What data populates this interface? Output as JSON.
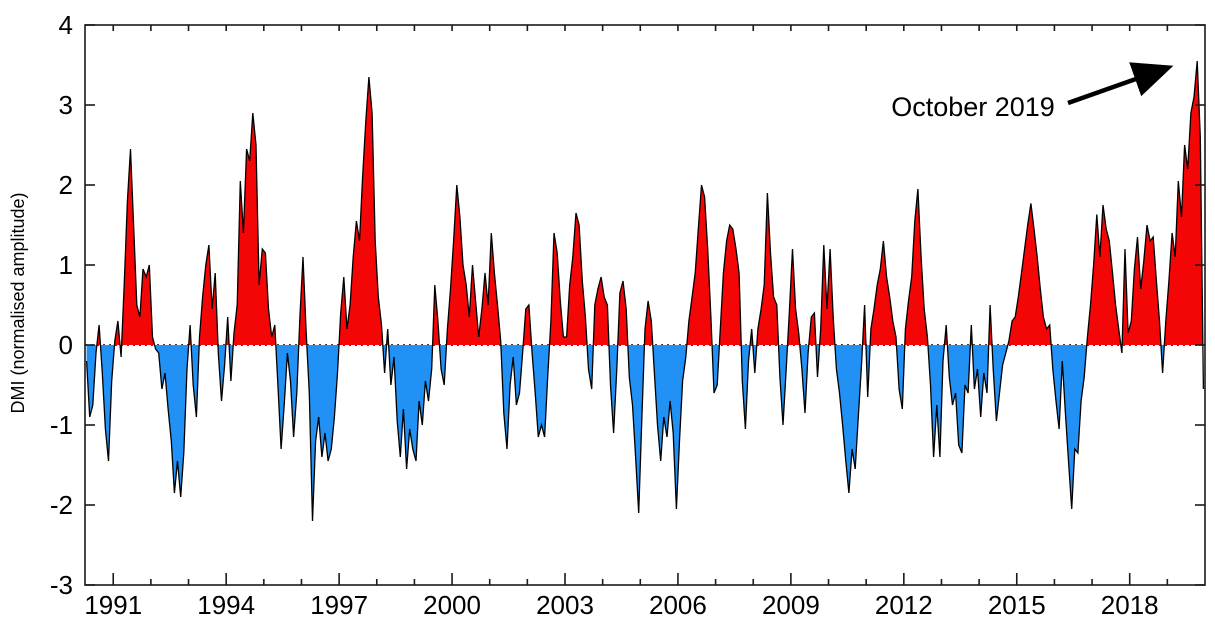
{
  "annotation": {
    "label": "October 2019"
  },
  "chart_data": {
    "type": "area",
    "title": "",
    "xlabel": "",
    "ylabel": "DMI (normalised amplitude)",
    "annotation": "October 2019",
    "annotation_points_to": "peak value 3.55 in October 2019",
    "xlim": [
      1990.25,
      2020.0
    ],
    "ylim": [
      -3,
      4
    ],
    "y_ticks": [
      -3,
      -2,
      -1,
      0,
      1,
      2,
      3,
      4
    ],
    "x_major_ticks": [
      1991,
      1994,
      1997,
      2000,
      2003,
      2006,
      2009,
      2012,
      2015,
      2018
    ],
    "x_minor_tick_interval_years": 1,
    "zero_line_style": "dotted",
    "grid": false,
    "positive_color": "#f40606",
    "negative_color": "#2191f5",
    "outline_color": "#000000",
    "cadence": "monthly",
    "series_start": {
      "year": 1990,
      "month": 4
    },
    "series_name": "DMI normalised amplitude",
    "values": [
      -0.2,
      -0.9,
      -0.75,
      -0.1,
      0.25,
      -0.35,
      -1.05,
      -1.45,
      -0.45,
      0.05,
      0.3,
      -0.15,
      0.75,
      1.8,
      2.45,
      1.5,
      0.5,
      0.35,
      0.95,
      0.85,
      1.0,
      0.1,
      -0.05,
      -0.1,
      -0.55,
      -0.35,
      -0.8,
      -1.2,
      -1.85,
      -1.45,
      -1.9,
      -1.35,
      -0.3,
      0.25,
      -0.5,
      -0.9,
      0.1,
      0.6,
      1.0,
      1.25,
      0.45,
      0.9,
      -0.1,
      -0.7,
      -0.25,
      0.35,
      -0.45,
      0.15,
      0.5,
      2.05,
      1.4,
      2.45,
      2.3,
      2.9,
      2.5,
      0.75,
      1.2,
      1.15,
      0.45,
      0.1,
      0.25,
      -0.5,
      -1.3,
      -0.75,
      -0.1,
      -0.45,
      -1.15,
      -0.6,
      0.35,
      1.1,
      0.15,
      -0.6,
      -2.2,
      -1.2,
      -0.9,
      -1.4,
      -1.1,
      -1.45,
      -1.3,
      -0.9,
      -0.35,
      0.4,
      0.85,
      0.2,
      0.5,
      1.1,
      1.55,
      1.3,
      2.1,
      2.8,
      3.35,
      2.9,
      1.3,
      0.6,
      0.25,
      -0.35,
      0.2,
      -0.5,
      -0.15,
      -0.95,
      -1.4,
      -0.8,
      -1.55,
      -1.05,
      -1.3,
      -1.45,
      -0.7,
      -1.0,
      -0.45,
      -0.7,
      -0.3,
      0.75,
      0.3,
      -0.3,
      -0.5,
      0.2,
      0.7,
      1.3,
      2.0,
      1.6,
      1.0,
      0.75,
      0.35,
      1.0,
      0.55,
      0.1,
      0.45,
      0.9,
      0.5,
      1.4,
      0.9,
      0.5,
      0.05,
      -0.85,
      -1.3,
      -0.5,
      -0.15,
      -0.75,
      -0.6,
      -0.1,
      0.45,
      0.5,
      -0.1,
      -0.6,
      -1.15,
      -1.0,
      -1.15,
      -0.4,
      0.3,
      1.4,
      1.15,
      0.55,
      0.1,
      0.1,
      0.75,
      1.1,
      1.65,
      1.5,
      0.8,
      0.35,
      -0.3,
      -0.55,
      0.5,
      0.7,
      0.85,
      0.6,
      0.5,
      -0.5,
      -1.1,
      -0.3,
      0.65,
      0.8,
      0.45,
      -0.4,
      -0.75,
      -1.4,
      -2.1,
      -0.9,
      0.2,
      0.55,
      0.3,
      -0.35,
      -1.0,
      -1.45,
      -0.9,
      -1.15,
      -0.7,
      -1.1,
      -2.05,
      -1.2,
      -0.45,
      -0.15,
      0.3,
      0.6,
      0.9,
      1.45,
      2.0,
      1.85,
      1.2,
      0.35,
      -0.6,
      -0.5,
      0.2,
      0.9,
      1.3,
      1.5,
      1.45,
      1.2,
      0.9,
      -0.45,
      -1.05,
      -0.2,
      0.2,
      -0.35,
      0.2,
      0.45,
      0.75,
      1.9,
      1.15,
      0.6,
      0.5,
      -0.4,
      -1.0,
      -0.3,
      0.4,
      1.2,
      0.45,
      0.15,
      -0.3,
      -0.85,
      -0.1,
      0.35,
      0.4,
      -0.4,
      0.2,
      1.25,
      0.45,
      1.2,
      0.35,
      -0.3,
      -0.6,
      -1.0,
      -1.45,
      -1.85,
      -1.3,
      -1.55,
      -0.9,
      -0.25,
      0.5,
      -0.65,
      0.2,
      0.45,
      0.75,
      0.95,
      1.3,
      0.85,
      0.6,
      0.3,
      0.1,
      -0.55,
      -0.8,
      0.2,
      0.55,
      0.85,
      1.55,
      1.95,
      1.1,
      0.45,
      0.1,
      -0.5,
      -1.4,
      -0.75,
      -1.4,
      -0.2,
      0.25,
      -0.4,
      -0.75,
      -0.6,
      -1.25,
      -1.35,
      -0.5,
      -0.6,
      0.25,
      -0.55,
      -0.3,
      -0.9,
      -0.35,
      -0.6,
      0.5,
      -0.3,
      -0.95,
      -0.6,
      -0.25,
      -0.1,
      0.05,
      0.3,
      0.35,
      0.6,
      0.9,
      1.2,
      1.5,
      1.77,
      1.45,
      1.1,
      0.7,
      0.35,
      0.2,
      0.25,
      -0.3,
      -0.7,
      -1.05,
      -0.2,
      -0.85,
      -1.45,
      -2.05,
      -1.3,
      -1.35,
      -0.7,
      -0.4,
      0.1,
      0.5,
      1.0,
      1.63,
      1.1,
      1.75,
      1.45,
      1.3,
      0.9,
      0.5,
      0.2,
      -0.1,
      1.2,
      0.15,
      0.3,
      0.95,
      1.35,
      0.7,
      1.05,
      1.5,
      1.3,
      1.35,
      0.8,
      0.3,
      -0.35,
      0.3,
      0.8,
      1.4,
      1.1,
      2.05,
      1.6,
      2.5,
      2.2,
      2.9,
      3.1,
      3.55,
      2.6,
      -0.55
    ]
  }
}
